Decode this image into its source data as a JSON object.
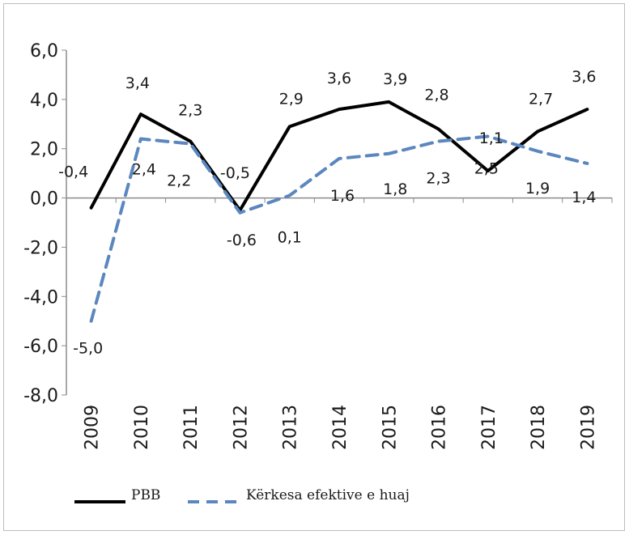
{
  "chart_data": {
    "type": "line",
    "title": "",
    "xlabel": "",
    "ylabel": "",
    "ylim": [
      -8,
      6
    ],
    "yticks": [
      6,
      4,
      2,
      0,
      -2,
      -4,
      -6,
      -8
    ],
    "ytick_labels": [
      "6,0",
      "4,0",
      "2,0",
      "0,0",
      "-2,0",
      "-4,0",
      "-6,0",
      "-8,0"
    ],
    "categories": [
      "2009",
      "2010",
      "2011",
      "2012",
      "2013",
      "2014",
      "2015",
      "2016",
      "2017",
      "2018",
      "2019"
    ],
    "grid": false,
    "legend_position": "bottom-left",
    "series": [
      {
        "name": "PBB",
        "style": "solid",
        "color": "#000000",
        "values": [
          -0.4,
          3.4,
          2.3,
          -0.5,
          2.9,
          3.6,
          3.9,
          2.8,
          1.1,
          2.7,
          3.6
        ],
        "labels": [
          "-0,4",
          "3,4",
          "2,3",
          "-0,5",
          "2,9",
          "3,6",
          "3,9",
          "2,8",
          "1,1",
          "2,7",
          "3,6"
        ]
      },
      {
        "name": "Kërkesa efektive e huaj",
        "style": "dashed",
        "color": "#5b87bf",
        "values": [
          -5.0,
          2.4,
          2.2,
          -0.6,
          0.1,
          1.6,
          1.8,
          2.3,
          2.5,
          1.9,
          1.4
        ],
        "labels": [
          "-5,0",
          "2,4",
          "2,2",
          "-0,6",
          "0,1",
          "1,6",
          "1,8",
          "2,3",
          "2,5",
          "1,9",
          "1,4"
        ]
      }
    ]
  }
}
